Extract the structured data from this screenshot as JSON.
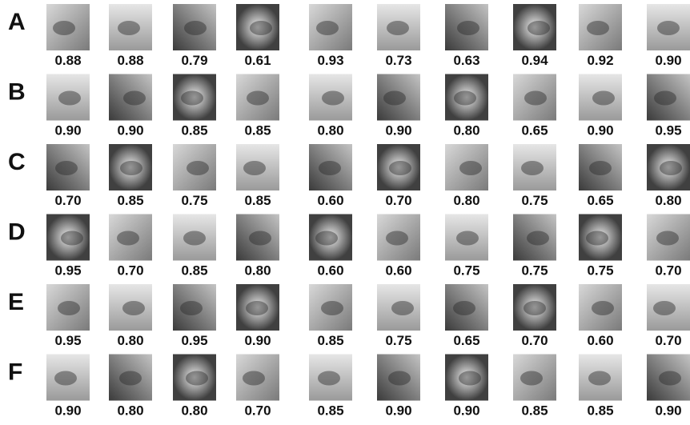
{
  "rows": [
    {
      "label": "A",
      "scores": [
        "0.88",
        "0.88",
        "0.79",
        "0.61",
        "0.93",
        "0.73",
        "0.63",
        "0.94",
        "0.92",
        "0.90"
      ]
    },
    {
      "label": "B",
      "scores": [
        "0.90",
        "0.90",
        "0.85",
        "0.85",
        "0.80",
        "0.90",
        "0.80",
        "0.65",
        "0.90",
        "0.95"
      ]
    },
    {
      "label": "C",
      "scores": [
        "0.70",
        "0.85",
        "0.75",
        "0.85",
        "0.60",
        "0.70",
        "0.80",
        "0.75",
        "0.65",
        "0.80"
      ]
    },
    {
      "label": "D",
      "scores": [
        "0.95",
        "0.70",
        "0.85",
        "0.80",
        "0.60",
        "0.60",
        "0.75",
        "0.75",
        "0.75",
        "0.70"
      ]
    },
    {
      "label": "E",
      "scores": [
        "0.95",
        "0.80",
        "0.95",
        "0.90",
        "0.85",
        "0.75",
        "0.65",
        "0.70",
        "0.60",
        "0.70"
      ]
    },
    {
      "label": "F",
      "scores": [
        "0.90",
        "0.80",
        "0.80",
        "0.70",
        "0.85",
        "0.90",
        "0.90",
        "0.85",
        "0.85",
        "0.90"
      ]
    }
  ]
}
